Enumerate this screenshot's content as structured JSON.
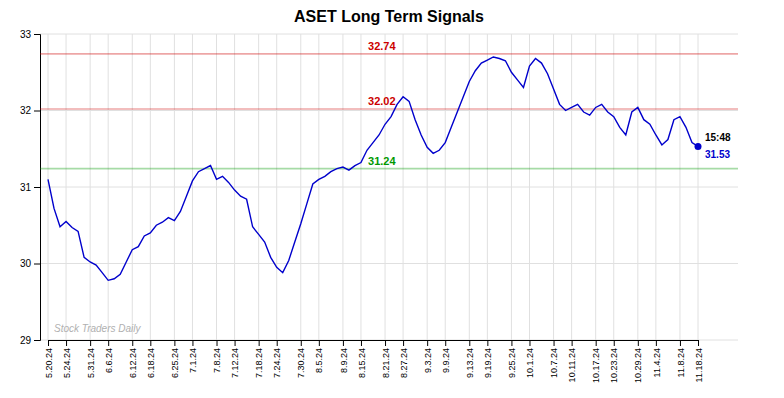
{
  "chart_data": {
    "type": "line",
    "title": "ASET Long Term Signals",
    "watermark": "Stock Traders Daily",
    "color": "#0000cc",
    "grid": true,
    "ylim": [
      29.0,
      33.0
    ],
    "yticks": [
      29,
      30,
      31,
      32,
      33
    ],
    "categories": [
      "5.20.24",
      null,
      null,
      "5.24.24",
      null,
      null,
      null,
      "5.31.24",
      null,
      null,
      "6.6.24",
      null,
      null,
      null,
      "6.12.24",
      null,
      null,
      "6.18.24",
      null,
      null,
      null,
      "6.25.24",
      null,
      null,
      "7.1.24",
      null,
      null,
      null,
      "7.8.24",
      null,
      null,
      "7.12.24",
      null,
      null,
      null,
      "7.18.24",
      null,
      null,
      "7.24.24",
      null,
      null,
      null,
      "7.30.24",
      null,
      null,
      "8.5.24",
      null,
      null,
      null,
      "8.9.24",
      null,
      null,
      "8.15.24",
      null,
      null,
      null,
      "8.21.24",
      null,
      null,
      "8.27.24",
      null,
      null,
      null,
      "9.3.24",
      null,
      null,
      "9.9.24",
      null,
      null,
      null,
      "9.13.24",
      null,
      null,
      "9.19.24",
      null,
      null,
      null,
      "9.25.24",
      null,
      null,
      "10.1.24",
      null,
      null,
      null,
      "10.7.24",
      null,
      null,
      "10.11.24",
      null,
      null,
      null,
      "10.17.24",
      null,
      null,
      "10.23.24",
      null,
      null,
      null,
      "10.29.24",
      null,
      null,
      "11.4.24",
      null,
      null,
      null,
      "11.8.24",
      null,
      null,
      "11.18.24"
    ],
    "values": [
      31.1,
      30.72,
      30.48,
      30.55,
      30.47,
      30.42,
      30.08,
      30.02,
      29.98,
      29.88,
      29.78,
      29.8,
      29.86,
      30.02,
      30.18,
      30.22,
      30.36,
      30.4,
      30.5,
      30.54,
      30.6,
      30.56,
      30.68,
      30.88,
      31.08,
      31.2,
      31.24,
      31.28,
      31.1,
      31.14,
      31.06,
      30.96,
      30.88,
      30.84,
      30.48,
      30.38,
      30.28,
      30.08,
      29.95,
      29.88,
      30.04,
      30.28,
      30.52,
      30.78,
      31.04,
      31.1,
      31.14,
      31.2,
      31.24,
      31.26,
      31.22,
      31.28,
      31.32,
      31.48,
      31.58,
      31.68,
      31.82,
      31.92,
      32.08,
      32.18,
      32.12,
      31.88,
      31.68,
      31.52,
      31.44,
      31.48,
      31.58,
      31.78,
      31.98,
      32.18,
      32.38,
      32.52,
      32.62,
      32.66,
      32.7,
      32.68,
      32.65,
      32.5,
      32.4,
      32.3,
      32.58,
      32.68,
      32.62,
      32.48,
      32.28,
      32.08,
      32.0,
      32.04,
      32.08,
      31.98,
      31.94,
      32.04,
      32.08,
      31.98,
      31.92,
      31.78,
      31.68,
      31.98,
      32.04,
      31.88,
      31.82,
      31.68,
      31.55,
      31.62,
      31.88,
      31.92,
      31.78,
      31.58,
      31.53
    ],
    "reference_lines": [
      {
        "value": 32.74,
        "color": "#cc0000"
      },
      {
        "value": 32.02,
        "color": "#cc0000"
      },
      {
        "value": 31.24,
        "color": "#009900"
      }
    ],
    "last_time": "15:48",
    "last_price": 31.53
  }
}
